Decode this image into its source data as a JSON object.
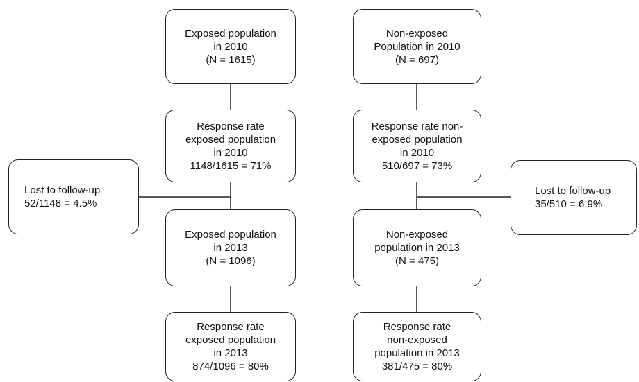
{
  "left": {
    "box1": [
      "Exposed population",
      "in 2010",
      "(N = 1615)"
    ],
    "box2": [
      "Response rate",
      "exposed population",
      "in 2010",
      "1148/1615 = 71%"
    ],
    "box3": [
      "Exposed population",
      "in 2013",
      "(N = 1096)"
    ],
    "box4": [
      "Response rate",
      "exposed population",
      "in 2013",
      "874/1096 = 80%"
    ],
    "lost": [
      "Lost to follow-up",
      "52/1148 = 4.5%"
    ]
  },
  "right": {
    "box1": [
      "Non-exposed",
      "Population in 2010",
      "(N = 697)"
    ],
    "box2": [
      "Response rate non-",
      "exposed population",
      "in 2010",
      "510/697 = 73%"
    ],
    "box3": [
      "Non-exposed",
      "population in 2013",
      "(N = 475)"
    ],
    "box4": [
      "Response rate",
      "non-exposed",
      "population in 2013",
      "381/475 = 80%"
    ],
    "lost": [
      "Lost to follow-up",
      "35/510 = 6.9%"
    ]
  }
}
